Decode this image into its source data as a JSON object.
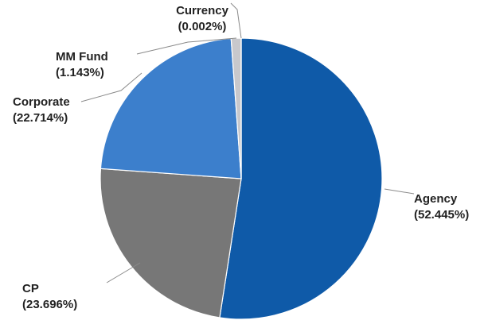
{
  "chart_data": {
    "type": "pie",
    "title": "",
    "slices": [
      {
        "label": "Agency",
        "value": 52.445,
        "value_label": "(52.445%)",
        "color": "#0f5aa8"
      },
      {
        "label": "CP",
        "value": 23.696,
        "value_label": "(23.696%)",
        "color": "#777777"
      },
      {
        "label": "Corporate",
        "value": 22.714,
        "value_label": "(22.714%)",
        "color": "#3c7fcc"
      },
      {
        "label": "MM Fund",
        "value": 1.143,
        "value_label": "(1.143%)",
        "color": "#c8c8cc"
      },
      {
        "label": "Currency",
        "value": 0.002,
        "value_label": "(0.002%)",
        "color": "#1a3f75"
      }
    ],
    "start": "12 o'clock",
    "direction": "clockwise",
    "legend": "none",
    "labels": "outside with leader lines"
  }
}
